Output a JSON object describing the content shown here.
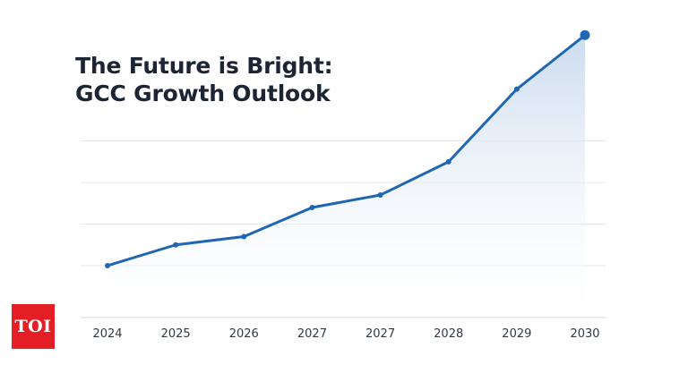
{
  "title_lines": [
    "The Future is Bright:",
    "GCC Growth Outlook"
  ],
  "logo": {
    "text": "TOI",
    "color": "#e31e24"
  },
  "colors": {
    "line": "#1f66b3",
    "fill_top": "#c9d9ee",
    "fill_bottom": "#ffffff",
    "grid": "#e3e6ea",
    "axis": "#d5d9de",
    "label": "#303845"
  },
  "chart_data": {
    "type": "area",
    "title": "The Future is Bright: GCC Growth Outlook",
    "xlabel": "",
    "ylabel": "",
    "categories": [
      "2024",
      "2025",
      "2026",
      "2027",
      "2027",
      "2028",
      "2029",
      "2030"
    ],
    "values": [
      1.0,
      2.0,
      2.4,
      3.8,
      4.4,
      6.0,
      9.5,
      12.1
    ],
    "ylim": [
      -1.5,
      12.5
    ],
    "yticks": [
      1.0,
      3.0,
      5.0,
      7.0
    ],
    "y_tick_labels_shown": false,
    "grid": true,
    "legend": "none",
    "last_point_highlighted": true
  }
}
